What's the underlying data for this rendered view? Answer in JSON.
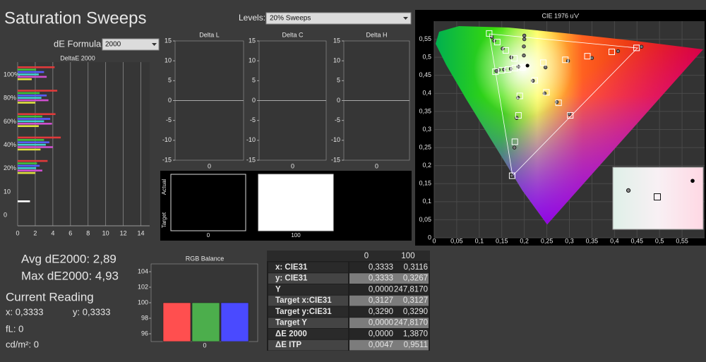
{
  "header": {
    "title": "Saturation Sweeps",
    "levels_label": "Levels:",
    "levels_value": "20% Sweeps",
    "formula_label": "dE Formula:",
    "formula_value": "2000"
  },
  "deltae_chart": {
    "title": "DeltaE 2000",
    "xlim": [
      0,
      15
    ],
    "xticks": [
      0,
      2,
      4,
      6,
      8,
      10,
      12,
      14
    ],
    "ylabels": [
      "100%",
      "80%",
      "60%",
      "40%",
      "20%",
      "10",
      "0"
    ],
    "series": [
      {
        "color": "#e03a3a",
        "values": [
          4.2,
          4.5,
          4.3,
          4.9,
          3.4,
          null
        ]
      },
      {
        "color": "#3fbf3f",
        "values": [
          2.1,
          2.5,
          2.8,
          3.0,
          2.2,
          null
        ]
      },
      {
        "color": "#5a5aff",
        "values": [
          3.0,
          3.3,
          3.7,
          3.6,
          2.5,
          null
        ]
      },
      {
        "color": "#40d0d0",
        "values": [
          2.4,
          2.7,
          3.0,
          3.2,
          2.1,
          null
        ]
      },
      {
        "color": "#d050d0",
        "values": [
          3.3,
          3.5,
          3.9,
          4.0,
          2.8,
          null
        ]
      },
      {
        "color": "#e0e040",
        "values": [
          1.6,
          2.0,
          2.4,
          2.6,
          2.0,
          null
        ]
      },
      {
        "color": "#ffffff",
        "values": [
          null,
          null,
          null,
          null,
          null,
          1.4
        ]
      }
    ]
  },
  "delta_charts": [
    {
      "title": "Delta L",
      "ylim": [
        -15,
        15
      ],
      "yticks": [
        15,
        10,
        5,
        0,
        -5,
        -10,
        -15
      ],
      "categories": [
        "0"
      ],
      "values": [
        0
      ]
    },
    {
      "title": "Delta C",
      "ylim": [
        -15,
        15
      ],
      "yticks": [
        15,
        10,
        5,
        0,
        -5,
        -10,
        -15
      ],
      "categories": [
        "0"
      ],
      "values": [
        0
      ]
    },
    {
      "title": "Delta H",
      "ylim": [
        -15,
        15
      ],
      "yticks": [
        15,
        10,
        5,
        0,
        -5,
        -10,
        -15
      ],
      "categories": [
        "0"
      ],
      "values": [
        0
      ]
    }
  ],
  "swatches": {
    "actual_label": "Actual",
    "target_label": "Target",
    "labels": [
      "0",
      "100"
    ]
  },
  "stats": {
    "avg": "Avg dE2000: 2,89",
    "max": "Max dE2000: 4,93"
  },
  "current_reading": {
    "title": "Current Reading",
    "x": "x: 0,3333",
    "y": "y: 0,3333",
    "fl": "fL: 0",
    "cdm2": "cd/m²: 0"
  },
  "rgb_balance": {
    "title": "RGB Balance",
    "ylim": [
      95,
      105
    ],
    "yticks": [
      96,
      98,
      100,
      102,
      104
    ],
    "categories": [
      "0"
    ],
    "series": [
      {
        "color": "#ff4f4f",
        "values": [
          100
        ]
      },
      {
        "color": "#4cae4c",
        "values": [
          100
        ]
      },
      {
        "color": "#4a4aff",
        "values": [
          100
        ]
      }
    ]
  },
  "table": {
    "header": [
      "0",
      "100"
    ],
    "rows": [
      [
        "x: CIE31",
        "0,3333",
        "0,3116"
      ],
      [
        "y: CIE31",
        "0,3333",
        "0,3267"
      ],
      [
        "Y",
        "0,0000",
        "247,8170"
      ],
      [
        "Target x:CIE31",
        "0,3127",
        "0,3127"
      ],
      [
        "Target y:CIE31",
        "0,3290",
        "0,3290"
      ],
      [
        "Target Y",
        "0,0000",
        "247,8170"
      ],
      [
        "ΔE 2000",
        "0,0000",
        "1,3870"
      ],
      [
        "ΔE ITP",
        "0,0047",
        "0,9511"
      ]
    ]
  },
  "cie": {
    "title": "CIE 1976 u'v'",
    "xlim": [
      0,
      0.6
    ],
    "ylim": [
      0,
      0.6
    ],
    "xticks": [
      0,
      {
        "value": 0.05,
        "label": "0,05"
      },
      {
        "value": 0.1,
        "label": "0,1"
      },
      {
        "value": 0.15,
        "label": "0,15"
      },
      {
        "value": 0.2,
        "label": "0,2"
      },
      {
        "value": 0.25,
        "label": "0,25"
      },
      {
        "value": 0.3,
        "label": "0,3"
      },
      {
        "value": 0.35,
        "label": "0,35"
      },
      {
        "value": 0.4,
        "label": "0,4"
      },
      {
        "value": 0.45,
        "label": "0,45"
      },
      {
        "value": 0.5,
        "label": "0,5"
      },
      {
        "value": 0.55,
        "label": "0,55"
      }
    ],
    "yticks": [
      0,
      {
        "value": 0.05,
        "label": "0,05"
      },
      {
        "value": 0.1,
        "label": "0,1"
      },
      {
        "value": 0.15,
        "label": "0,15"
      },
      {
        "value": 0.2,
        "label": "0,2"
      },
      {
        "value": 0.25,
        "label": "0,25"
      },
      {
        "value": 0.3,
        "label": "0,3"
      },
      {
        "value": 0.35,
        "label": "0,35"
      },
      {
        "value": 0.4,
        "label": "0,4"
      },
      {
        "value": 0.45,
        "label": "0,45"
      },
      {
        "value": 0.5,
        "label": "0,5"
      },
      {
        "value": 0.55,
        "label": "0,55"
      }
    ],
    "targets": {
      "u": [
        0.196,
        0.19,
        0.187,
        0.179,
        0.173,
        0.242,
        0.291,
        0.34,
        0.394,
        0.449,
        0.178,
        0.159,
        0.14,
        0.122,
        0.179,
        0.164,
        0.15,
        0.136,
        0.223,
        0.249,
        0.276,
        0.302
      ],
      "v": [
        0.472,
        0.393,
        0.339,
        0.266,
        0.172,
        0.485,
        0.493,
        0.503,
        0.515,
        0.526,
        0.497,
        0.519,
        0.542,
        0.566,
        0.47,
        0.466,
        0.464,
        0.46,
        0.436,
        0.403,
        0.374,
        0.339
      ]
    },
    "measured": {
      "u": [
        0.187,
        0.186,
        0.183,
        0.178,
        0.172,
        0.247,
        0.297,
        0.35,
        0.408,
        0.46,
        0.171,
        0.152,
        0.133,
        0.128,
        0.17,
        0.155,
        0.143,
        0.138,
        0.219,
        0.245,
        0.272,
        0.3,
        0.199,
        0.199,
        0.2,
        0.2
      ],
      "v": [
        0.474,
        0.388,
        0.332,
        0.25,
        0.172,
        0.472,
        0.49,
        0.498,
        0.517,
        0.529,
        0.5,
        0.524,
        0.546,
        0.556,
        0.468,
        0.466,
        0.465,
        0.462,
        0.435,
        0.4,
        0.376,
        0.343,
        0.505,
        0.53,
        0.55,
        0.56
      ]
    },
    "current": {
      "u": 0.207,
      "v": 0.477
    }
  }
}
